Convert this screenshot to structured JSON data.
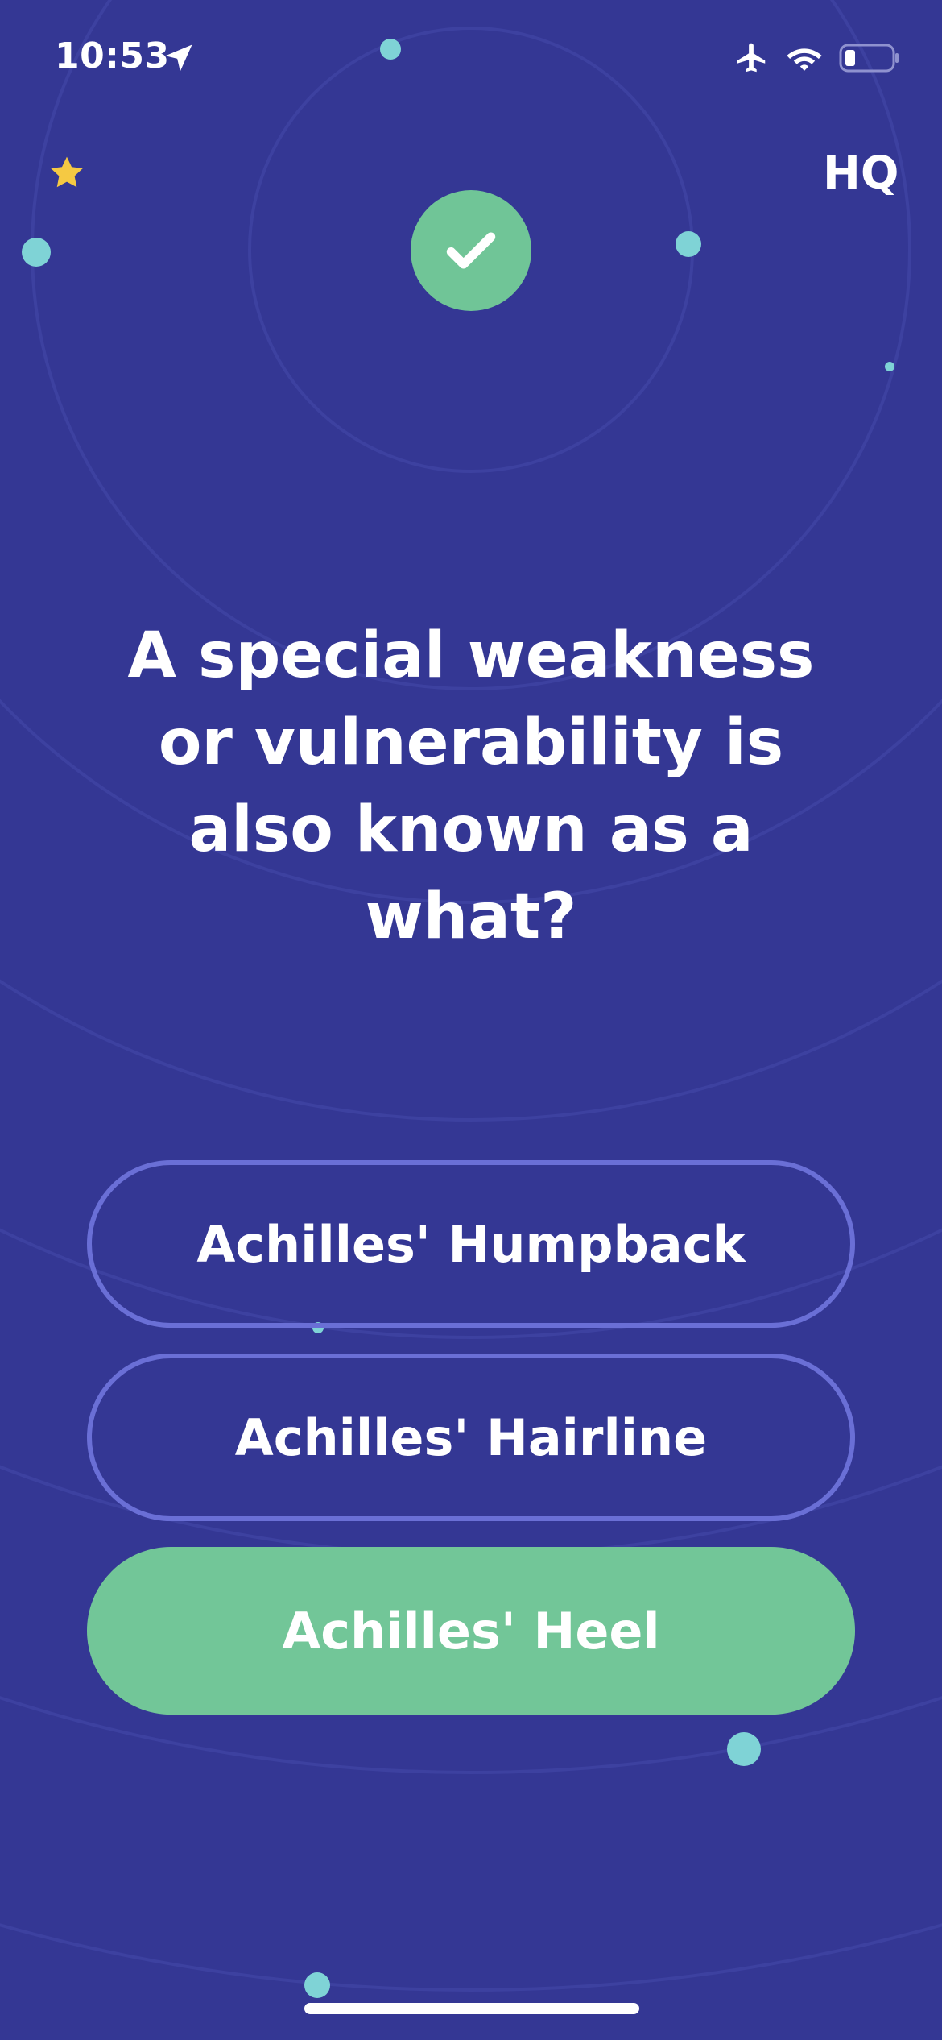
{
  "status_bar": {
    "time": "10:53",
    "icons": [
      "location-arrow-icon",
      "airplane-icon",
      "wifi-icon",
      "battery-icon"
    ]
  },
  "header": {
    "logo_text": "HQ",
    "left_icon": "star-icon",
    "result_icon": "checkmark-icon"
  },
  "question": {
    "text": "A special weakness or vulnerability is also known as a what?"
  },
  "answers": [
    {
      "label": "Achilles' Humpback",
      "state": "unselected"
    },
    {
      "label": "Achilles' Hairline",
      "state": "unselected"
    },
    {
      "label": "Achilles' Heel",
      "state": "correct"
    }
  ],
  "colors": {
    "background": "#343794",
    "correct": "#72c698",
    "outline": "#6a6fd6",
    "dot": "#7fd3d6",
    "star": "#f5c943"
  }
}
